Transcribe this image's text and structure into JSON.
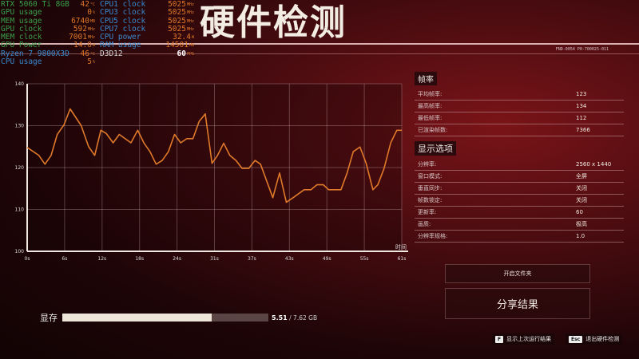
{
  "title": "硬件检测",
  "build_code": "FND-0054 P0-700025-011",
  "osd": [
    {
      "label": "RTX 5060 Ti 8GB",
      "value": "42",
      "unit": "°C",
      "color": "g"
    },
    {
      "label": "GPU usage",
      "value": "0",
      "unit": "%",
      "color": "g"
    },
    {
      "label": "MEM usage",
      "value": "6740",
      "unit": "MB",
      "color": "g"
    },
    {
      "label": "GPU clock",
      "value": "592",
      "unit": "MHz",
      "color": "g"
    },
    {
      "label": "MEM clock",
      "value": "7001",
      "unit": "MHz",
      "color": "g"
    },
    {
      "label": "GPU Power",
      "value": "14.0",
      "unit": "W",
      "color": "g"
    },
    {
      "label": "Ryzen 7 9800X3D",
      "value": "46",
      "unit": "°C",
      "color": "b"
    },
    {
      "label": "CPU usage",
      "value": "5",
      "unit": "%",
      "color": "b"
    },
    {
      "label": "CPU1 clock",
      "value": "5025",
      "unit": "MHz",
      "color": "b"
    },
    {
      "label": "CPU3 clock",
      "value": "5025",
      "unit": "MHz",
      "color": "b"
    },
    {
      "label": "CPU5 clock",
      "value": "5025",
      "unit": "MHz",
      "color": "b"
    },
    {
      "label": "CPU7 clock",
      "value": "5025",
      "unit": "MHz",
      "color": "b"
    },
    {
      "label": "CPU power",
      "value": "32.4",
      "unit": "W",
      "color": "b"
    },
    {
      "label": "RAM usage",
      "value": "14501",
      "unit": "MB",
      "color": "b"
    },
    {
      "label": "D3D12",
      "value": "60",
      "unit": "FPS",
      "color": "w"
    }
  ],
  "chart_data": {
    "type": "line",
    "xlabel": "时间",
    "xlim": [
      0,
      61
    ],
    "ylim": [
      100,
      140
    ],
    "x_ticks": [
      "0s",
      "6s",
      "12s",
      "18s",
      "24s",
      "31s",
      "37s",
      "43s",
      "49s",
      "55s",
      "61s"
    ],
    "y_ticks": [
      "100",
      "110",
      "120",
      "130",
      "140"
    ],
    "grid": true,
    "line_color": "#e07a2a",
    "x": [
      0,
      1.9,
      2.9,
      3.9,
      4.9,
      6,
      7,
      8.8,
      10,
      11,
      12,
      12.9,
      14,
      15,
      16.9,
      18,
      19,
      20,
      21,
      22,
      23,
      24,
      25,
      26,
      27,
      28,
      29,
      30.1,
      31,
      32,
      33,
      34,
      35,
      36.1,
      37.1,
      38,
      40,
      41.1,
      42.2,
      43.3,
      45.1,
      46.2,
      47.2,
      48.2,
      49.1,
      51.1,
      52.1,
      53.1,
      54.2,
      55.2,
      56.3,
      57.1,
      58.1,
      59.2,
      60.2,
      61
    ],
    "y": [
      124.8,
      122.9,
      120.8,
      122.9,
      127.9,
      130.2,
      134,
      130,
      125,
      122.9,
      128.9,
      128.1,
      125.9,
      127.9,
      125.9,
      128.9,
      125.9,
      123.8,
      120.8,
      121.7,
      123.8,
      127.9,
      125.9,
      126.9,
      126.9,
      131,
      132.8,
      121,
      122.9,
      125.8,
      122.9,
      121.7,
      119.8,
      119.8,
      121.7,
      120.8,
      112.8,
      118.7,
      111.7,
      112.8,
      114.7,
      114.7,
      115.9,
      115.9,
      114.7,
      114.7,
      118.7,
      123.8,
      124.9,
      121,
      114.7,
      115.9,
      119.7,
      125.9,
      128.9,
      128.9
    ]
  },
  "framerate": {
    "heading": "帧率",
    "rows": [
      {
        "label": "平均帧率:",
        "value": "123"
      },
      {
        "label": "最高帧率:",
        "value": "134"
      },
      {
        "label": "最低帧率:",
        "value": "112"
      },
      {
        "label": "已渲染帧数:",
        "value": "7366"
      }
    ]
  },
  "display": {
    "heading": "显示选项",
    "rows": [
      {
        "label": "分辨率:",
        "value": "2560 x 1440"
      },
      {
        "label": "窗口模式:",
        "value": "全屏"
      },
      {
        "label": "垂直同步:",
        "value": "关闭"
      },
      {
        "label": "帧数锁定:",
        "value": "关闭"
      },
      {
        "label": "更新率:",
        "value": "60"
      },
      {
        "label": "画质:",
        "value": "极高"
      },
      {
        "label": "分辨率规格:",
        "value": "1.0"
      }
    ]
  },
  "buttons": {
    "open_folder": "开启文件夹",
    "share": "分享结果"
  },
  "vram": {
    "label": "显存",
    "used": "5.51",
    "total": "/ 7.62 GB",
    "fraction": 0.723
  },
  "hints": [
    {
      "key": "F",
      "label": "显示上次运行结果"
    },
    {
      "key": "Esc",
      "label": "退出硬件检测"
    }
  ]
}
